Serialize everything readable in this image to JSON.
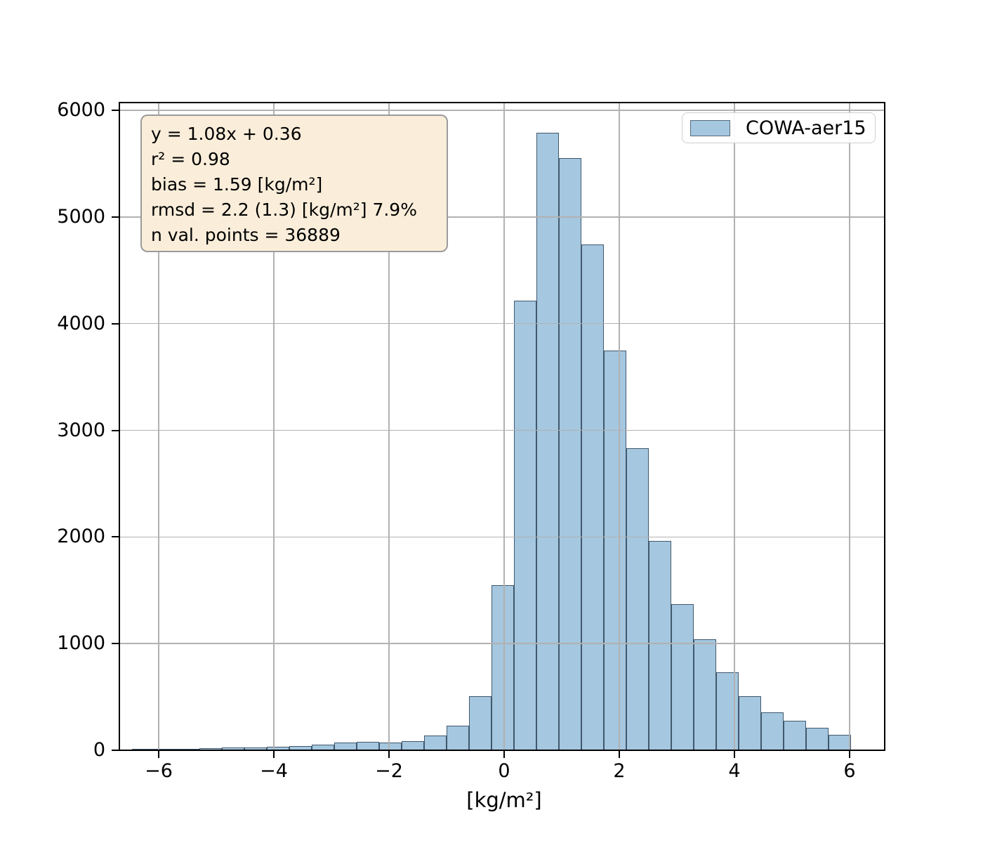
{
  "chart_data": {
    "type": "bar",
    "subtype": "histogram",
    "title": "",
    "xlabel": "[kg/m²]",
    "ylabel": "",
    "legend_position": "upper right",
    "grid": true,
    "series_label": "COWA-aer15",
    "bin_width": 0.39,
    "bin_edges": [
      -6.46,
      -6.07,
      -5.68,
      -5.29,
      -4.9,
      -4.51,
      -4.12,
      -3.73,
      -3.34,
      -2.95,
      -2.56,
      -2.17,
      -1.78,
      -1.39,
      -1.0,
      -0.61,
      -0.22,
      0.17,
      0.56,
      0.95,
      1.34,
      1.73,
      2.12,
      2.51,
      2.9,
      3.29,
      3.68,
      4.07,
      4.46,
      4.85,
      5.24,
      5.63,
      6.02
    ],
    "values": [
      8,
      14,
      16,
      20,
      24,
      28,
      30,
      38,
      55,
      74,
      78,
      70,
      86,
      140,
      230,
      510,
      1550,
      4215,
      5790,
      5550,
      4745,
      3745,
      2835,
      1965,
      1370,
      1040,
      730,
      505,
      353,
      280,
      214,
      147
    ],
    "x_ticks": [
      -6,
      -4,
      -2,
      0,
      2,
      4,
      6
    ],
    "x_tick_labels": [
      "−6",
      "−4",
      "−2",
      "0",
      "2",
      "4",
      "6"
    ],
    "y_ticks": [
      0,
      1000,
      2000,
      3000,
      4000,
      5000,
      6000
    ],
    "y_tick_labels": [
      "0",
      "1000",
      "2000",
      "3000",
      "4000",
      "5000",
      "6000"
    ],
    "xlim": [
      -6.68,
      6.6
    ],
    "ylim": [
      0,
      6070
    ],
    "colors": {
      "bar_fill": "#a5c7e0",
      "bar_edge": "#41586d",
      "grid": "#b1b1b1",
      "stats_box_face": "#faeeda",
      "stats_box_edge": "#9b9b9b",
      "legend_patch_edge": "#5a6b79"
    }
  },
  "stats_box": {
    "lines": [
      "y = 1.08x + 0.36",
      "r² = 0.98",
      "bias = 1.59 [kg/m²]",
      "rmsd = 2.2 (1.3) [kg/m²] 7.9%",
      "n val. points = 36889"
    ]
  },
  "legend": {
    "label": "COWA-aer15"
  }
}
